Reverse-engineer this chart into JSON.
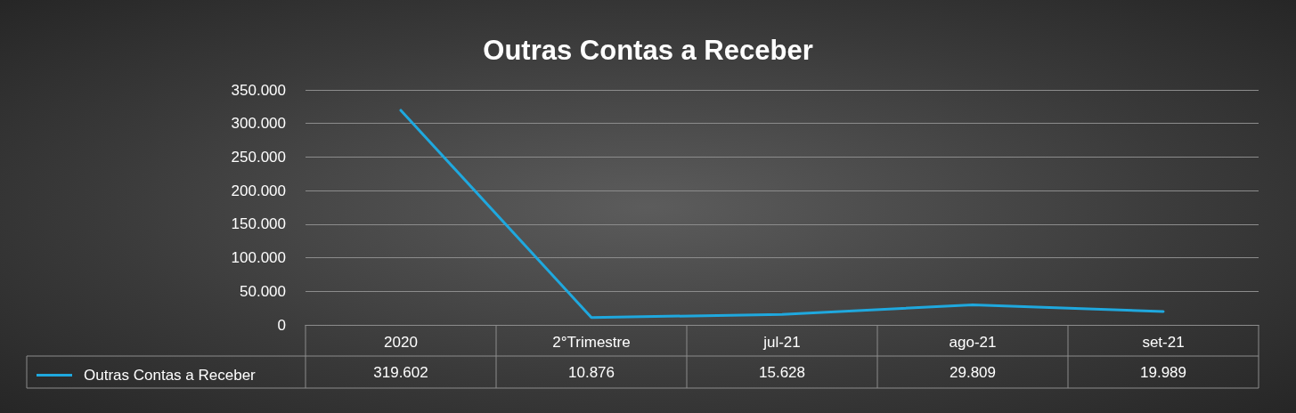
{
  "chart_data": {
    "type": "line",
    "title": "Outras Contas a Receber",
    "categories": [
      "2020",
      "2°Trimestre",
      "jul-21",
      "ago-21",
      "set-21"
    ],
    "series": [
      {
        "name": "Outras Contas a Receber",
        "color": "#1fa8de",
        "values": [
          319602,
          10876,
          15628,
          29809,
          19989
        ],
        "value_labels": [
          "319.602",
          "10.876",
          "15.628",
          "29.809",
          "19.989"
        ]
      }
    ],
    "ylim": [
      0,
      350000
    ],
    "yticks": [
      {
        "value": 0,
        "label": "0"
      },
      {
        "value": 50000,
        "label": "50.000"
      },
      {
        "value": 100000,
        "label": "100.000"
      },
      {
        "value": 150000,
        "label": "150.000"
      },
      {
        "value": 200000,
        "label": "200.000"
      },
      {
        "value": 250000,
        "label": "250.000"
      },
      {
        "value": 300000,
        "label": "300.000"
      },
      {
        "value": 350000,
        "label": "350.000"
      }
    ],
    "grid": "y",
    "legend": "bottom left",
    "marker": "none",
    "line_style": "solid"
  }
}
